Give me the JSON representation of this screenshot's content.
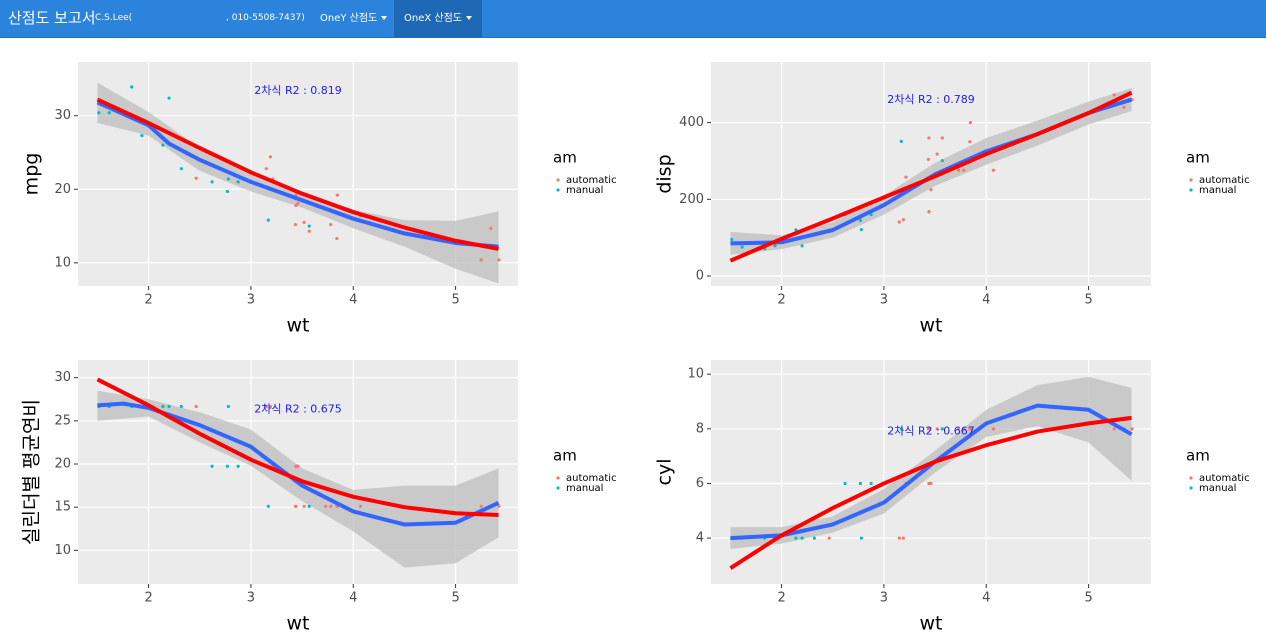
{
  "navbar": {
    "brand": "산점도 보고서",
    "author": "C.S.Lee(",
    "phone": ", 010-5508-7437)",
    "menu": [
      "OneY 산점도",
      "OneX 산점도"
    ]
  },
  "chart_data": [
    {
      "type": "scatter",
      "x_label": "wt",
      "y_label": "mpg",
      "annotation": "2차식 R2 : 0.819",
      "legend_title": "am",
      "xlim": [
        1.31,
        5.61
      ],
      "xticks": [
        2,
        3,
        4,
        5
      ],
      "ylim": [
        6.85,
        37.3
      ],
      "yticks": [
        10,
        20,
        30
      ],
      "series": [
        {
          "name": "automatic",
          "color": "#F8766D",
          "x": [
            3.215,
            3.44,
            3.46,
            3.57,
            3.19,
            3.15,
            3.44,
            3.44,
            4.07,
            3.73,
            3.78,
            5.25,
            5.424,
            5.345,
            2.465,
            3.52,
            3.435,
            3.84,
            3.845
          ],
          "values": [
            21.4,
            18.7,
            18.1,
            14.3,
            24.4,
            22.8,
            19.2,
            17.8,
            16.4,
            17.3,
            15.2,
            10.4,
            10.4,
            14.7,
            21.5,
            15.5,
            15.2,
            13.3,
            19.2
          ]
        },
        {
          "name": "manual",
          "color": "#00BFC4",
          "x": [
            2.62,
            2.875,
            2.32,
            2.2,
            1.615,
            1.835,
            1.935,
            2.14,
            1.513,
            3.17,
            2.77,
            3.57,
            2.78
          ],
          "values": [
            21,
            21,
            22.8,
            32.4,
            30.4,
            33.9,
            27.3,
            26,
            30.4,
            15.8,
            19.7,
            15,
            21.4
          ]
        }
      ],
      "band": {
        "color": "#BEBEBE",
        "x": [
          1.5,
          2,
          2.5,
          3,
          3.5,
          4,
          4.5,
          5,
          5.42
        ],
        "lower": [
          29,
          27.3,
          22.5,
          19.7,
          17.5,
          14.7,
          12.2,
          9.2,
          7.2
        ],
        "upper": [
          34.5,
          30.5,
          25.6,
          22.4,
          19.5,
          17.2,
          15.8,
          15.7,
          17
        ]
      },
      "lines": [
        {
          "color": "#3366FF",
          "x": [
            1.5,
            2,
            2.2,
            2.5,
            3,
            3.5,
            4,
            4.5,
            5,
            5.42
          ],
          "values": [
            31.8,
            28.7,
            26.2,
            24,
            21,
            18.5,
            16,
            14,
            12.7,
            12.2
          ]
        },
        {
          "color": "#FF0000",
          "x": [
            1.5,
            2,
            2.5,
            3,
            3.5,
            4,
            4.5,
            5,
            5.42
          ],
          "values": [
            32.2,
            29,
            25.6,
            22.3,
            19.4,
            16.9,
            14.8,
            13,
            11.9
          ]
        }
      ]
    },
    {
      "type": "scatter",
      "x_label": "wt",
      "y_label": "disp",
      "annotation": "2차식 R2 : 0.789",
      "legend_title": "am",
      "xlim": [
        1.31,
        5.61
      ],
      "xticks": [
        2,
        3,
        4,
        5
      ],
      "ylim": [
        -26,
        558
      ],
      "yticks": [
        0,
        200,
        400
      ],
      "series": [
        {
          "name": "automatic",
          "color": "#F8766D",
          "x": [
            3.215,
            3.44,
            3.46,
            3.57,
            3.19,
            3.15,
            3.44,
            3.44,
            4.07,
            3.73,
            3.78,
            5.25,
            5.424,
            5.345,
            2.465,
            3.52,
            3.435,
            3.84,
            3.845
          ],
          "values": [
            258,
            360,
            225,
            360,
            146.7,
            140.8,
            167.6,
            167.6,
            275.8,
            275.8,
            275.8,
            472,
            460,
            440,
            120.1,
            318,
            304,
            350,
            400
          ]
        },
        {
          "name": "manual",
          "color": "#00BFC4",
          "x": [
            2.62,
            2.875,
            2.32,
            2.2,
            1.615,
            1.835,
            1.935,
            2.14,
            1.513,
            3.17,
            2.77,
            3.57,
            2.78
          ],
          "values": [
            160,
            160,
            108,
            78.7,
            75.7,
            71.1,
            79,
            120.3,
            95.1,
            351,
            145,
            301,
            121
          ]
        }
      ],
      "band": {
        "color": "#BEBEBE",
        "x": [
          1.5,
          2,
          2.5,
          3,
          3.5,
          4,
          4.5,
          5,
          5.42
        ],
        "lower": [
          55,
          70,
          100,
          160,
          235,
          290,
          340,
          395,
          430
        ],
        "upper": [
          115,
          106,
          140,
          210,
          295,
          360,
          405,
          455,
          490
        ]
      },
      "lines": [
        {
          "color": "#3366FF",
          "x": [
            1.5,
            2,
            2.5,
            3,
            3.5,
            4,
            4.5,
            5,
            5.42
          ],
          "values": [
            85,
            88,
            120,
            185,
            265,
            325,
            370,
            425,
            460
          ]
        },
        {
          "color": "#FF0000",
          "x": [
            1.5,
            2,
            2.5,
            3,
            3.5,
            4,
            4.5,
            5,
            5.42
          ],
          "values": [
            40,
            97,
            150,
            205,
            260,
            318,
            370,
            425,
            478
          ]
        }
      ]
    },
    {
      "type": "scatter",
      "x_label": "wt",
      "y_label": "실린더별 평균연비",
      "annotation": "2차식 R2 : 0.675",
      "legend_title": "am",
      "xlim": [
        1.31,
        5.61
      ],
      "xticks": [
        2,
        3,
        4,
        5
      ],
      "ylim": [
        6.1,
        32.05
      ],
      "yticks": [
        10,
        15,
        20,
        25,
        30
      ],
      "series": [
        {
          "name": "automatic",
          "color": "#F8766D",
          "x": [
            3.215,
            3.44,
            3.46,
            3.57,
            3.19,
            3.15,
            3.44,
            3.44,
            4.07,
            3.73,
            3.78,
            5.25,
            5.424,
            5.345,
            2.465,
            3.52,
            3.435,
            3.84,
            3.845
          ],
          "values": [
            19.74,
            15.1,
            19.74,
            15.1,
            26.66,
            26.66,
            19.74,
            19.74,
            15.1,
            15.1,
            15.1,
            15.1,
            15.1,
            15.1,
            26.66,
            15.1,
            15.1,
            15.1,
            15.1
          ]
        },
        {
          "name": "manual",
          "color": "#00BFC4",
          "x": [
            2.62,
            2.875,
            2.32,
            2.2,
            1.615,
            1.835,
            1.935,
            2.14,
            1.513,
            3.17,
            2.77,
            3.57,
            2.78
          ],
          "values": [
            19.74,
            19.74,
            26.66,
            26.66,
            26.66,
            26.66,
            26.66,
            26.66,
            26.66,
            15.1,
            19.74,
            15.1,
            26.66
          ]
        }
      ],
      "band": {
        "color": "#BEBEBE",
        "x": [
          1.5,
          2,
          2.5,
          3,
          3.5,
          4,
          4.5,
          5,
          5.42
        ],
        "lower": [
          25,
          25.5,
          22.5,
          19.8,
          15.7,
          12.2,
          8,
          8.5,
          11.5
        ],
        "upper": [
          28.5,
          27.5,
          26,
          24,
          19.5,
          17,
          17.5,
          17.5,
          19.5
        ]
      },
      "lines": [
        {
          "color": "#3366FF",
          "x": [
            1.5,
            1.75,
            2,
            2.5,
            3,
            3.5,
            4,
            4.5,
            5,
            5.42
          ],
          "values": [
            26.8,
            27,
            26.5,
            24.5,
            22,
            17.5,
            14.5,
            13,
            13.2,
            15.5
          ]
        },
        {
          "color": "#FF0000",
          "x": [
            1.5,
            2,
            2.5,
            3,
            3.5,
            4,
            4.5,
            5,
            5.42
          ],
          "values": [
            29.8,
            26.8,
            23.5,
            20.5,
            18,
            16.2,
            15,
            14.3,
            14.1
          ]
        }
      ]
    },
    {
      "type": "scatter",
      "x_label": "wt",
      "y_label": "cyl",
      "annotation": "2차식 R2 : 0.667",
      "legend_title": "am",
      "xlim": [
        1.31,
        5.61
      ],
      "xticks": [
        2,
        3,
        4,
        5
      ],
      "ylim": [
        2.32,
        10.52
      ],
      "yticks": [
        4,
        6,
        8,
        10
      ],
      "series": [
        {
          "name": "automatic",
          "color": "#F8766D",
          "x": [
            3.215,
            3.44,
            3.46,
            3.57,
            3.19,
            3.15,
            3.44,
            3.44,
            4.07,
            3.73,
            3.78,
            5.25,
            5.424,
            5.345,
            2.465,
            3.52,
            3.435,
            3.84,
            3.845
          ],
          "values": [
            6,
            8,
            6,
            8,
            4,
            4,
            6,
            6,
            8,
            8,
            8,
            8,
            8,
            8,
            4,
            8,
            8,
            8,
            8
          ]
        },
        {
          "name": "manual",
          "color": "#00BFC4",
          "x": [
            2.62,
            2.875,
            2.32,
            2.2,
            1.615,
            1.835,
            1.935,
            2.14,
            1.513,
            3.17,
            2.77,
            3.57,
            2.78
          ],
          "values": [
            6,
            6,
            4,
            4,
            4,
            4,
            4,
            4,
            4,
            8,
            6,
            8,
            4
          ]
        }
      ],
      "band": {
        "color": "#BEBEBE",
        "x": [
          1.5,
          2,
          2.5,
          3,
          3.5,
          4,
          4.5,
          5,
          5.42
        ],
        "lower": [
          3.6,
          3.8,
          4.2,
          4.9,
          6.4,
          7.7,
          8.1,
          7.5,
          6.1
        ],
        "upper": [
          4.4,
          4.4,
          4.8,
          5.8,
          7.2,
          8.7,
          9.6,
          9.9,
          9.5
        ]
      },
      "lines": [
        {
          "color": "#3366FF",
          "x": [
            1.5,
            2,
            2.5,
            3,
            3.5,
            4,
            4.5,
            5,
            5.42
          ],
          "values": [
            4,
            4.1,
            4.5,
            5.3,
            6.8,
            8.2,
            8.85,
            8.7,
            7.8
          ]
        },
        {
          "color": "#FF0000",
          "x": [
            1.5,
            2,
            2.5,
            3,
            3.5,
            4,
            4.5,
            5,
            5.42
          ],
          "values": [
            2.9,
            4.1,
            5.1,
            6,
            6.8,
            7.4,
            7.9,
            8.2,
            8.4
          ]
        }
      ]
    }
  ]
}
